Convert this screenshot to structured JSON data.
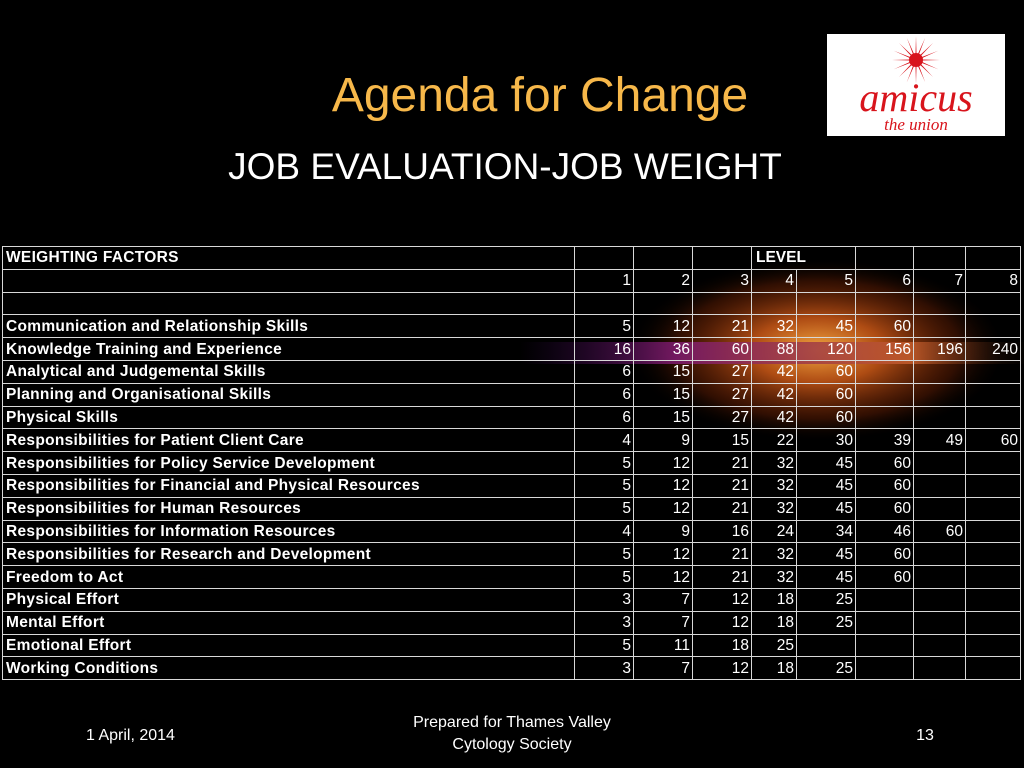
{
  "title": "Agenda for Change",
  "subtitle": "JOB EVALUATION-JOB WEIGHT",
  "logo": {
    "word": "amicus",
    "tagline": "the union",
    "icon": "starburst-icon",
    "color": "#d8141c"
  },
  "table": {
    "header_label": "WEIGHTING FACTORS",
    "level_label": "LEVEL",
    "levels": [
      "1",
      "2",
      "3",
      "4",
      "5",
      "6",
      "7",
      "8"
    ],
    "rows": [
      {
        "name": "Communication and Relationship Skills",
        "values": [
          "5",
          "12",
          "21",
          "32",
          "45",
          "60",
          "",
          ""
        ]
      },
      {
        "name": "Knowledge Training and Experience",
        "values": [
          "16",
          "36",
          "60",
          "88",
          "120",
          "156",
          "196",
          "240"
        ]
      },
      {
        "name": "Analytical and Judgemental Skills",
        "values": [
          "6",
          "15",
          "27",
          "42",
          "60",
          "",
          "",
          ""
        ]
      },
      {
        "name": "Planning and Organisational Skills",
        "values": [
          "6",
          "15",
          "27",
          "42",
          "60",
          "",
          "",
          ""
        ]
      },
      {
        "name": "Physical Skills",
        "values": [
          "6",
          "15",
          "27",
          "42",
          "60",
          "",
          "",
          ""
        ]
      },
      {
        "name": "Responsibilities for Patient Client Care",
        "values": [
          "4",
          "9",
          "15",
          "22",
          "30",
          "39",
          "49",
          "60"
        ]
      },
      {
        "name": "Responsibilities for Policy Service Development",
        "values": [
          "5",
          "12",
          "21",
          "32",
          "45",
          "60",
          "",
          ""
        ]
      },
      {
        "name": "Responsibilities for Financial and Physical Resources",
        "values": [
          "5",
          "12",
          "21",
          "32",
          "45",
          "60",
          "",
          ""
        ]
      },
      {
        "name": "Responsibilities for Human Resources",
        "values": [
          "5",
          "12",
          "21",
          "32",
          "45",
          "60",
          "",
          ""
        ]
      },
      {
        "name": "Responsibilities for Information Resources",
        "values": [
          "4",
          "9",
          "16",
          "24",
          "34",
          "46",
          "60",
          ""
        ]
      },
      {
        "name": "Responsibilities for Research and Development",
        "values": [
          "5",
          "12",
          "21",
          "32",
          "45",
          "60",
          "",
          ""
        ]
      },
      {
        "name": "Freedom to Act",
        "values": [
          "5",
          "12",
          "21",
          "32",
          "45",
          "60",
          "",
          ""
        ]
      },
      {
        "name": "Physical Effort",
        "values": [
          "3",
          "7",
          "12",
          "18",
          "25",
          "",
          "",
          ""
        ]
      },
      {
        "name": "Mental Effort",
        "values": [
          "3",
          "7",
          "12",
          "18",
          "25",
          "",
          "",
          ""
        ]
      },
      {
        "name": "Emotional Effort",
        "values": [
          "5",
          "11",
          "18",
          "25",
          "",
          "",
          "",
          ""
        ]
      },
      {
        "name": "Working Conditions",
        "values": [
          "3",
          "7",
          "12",
          "18",
          "25",
          "",
          "",
          ""
        ]
      }
    ]
  },
  "footer": {
    "date": "1 April, 2014",
    "prepared_line1": "Prepared for Thames Valley",
    "prepared_line2": "Cytology Society",
    "page": "13"
  }
}
